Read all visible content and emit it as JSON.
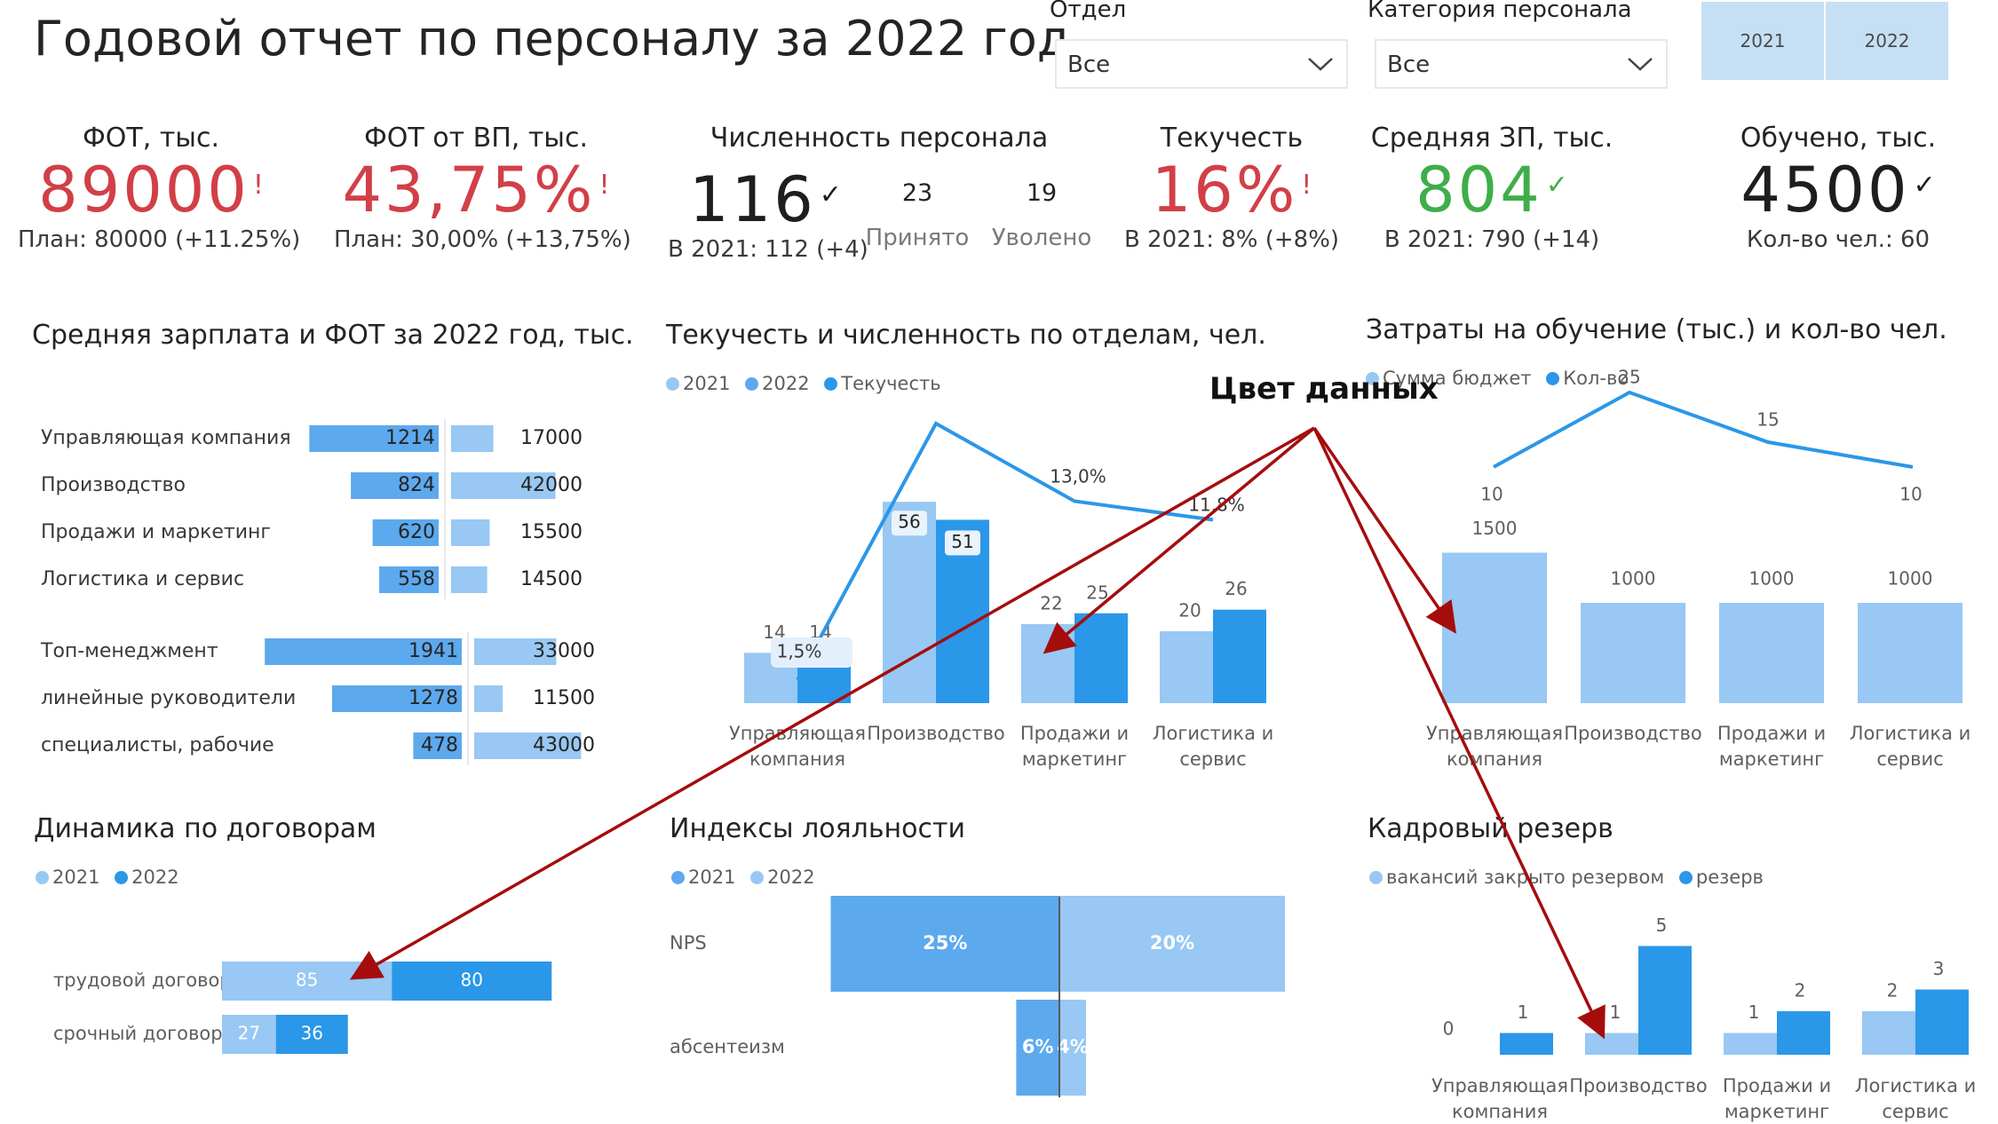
{
  "title": "Годовой отчет по персоналу за 2022 год",
  "colors": {
    "light": "#98c8f3",
    "mid": "#5da9ee",
    "dark": "#2b97e8",
    "red": "#d23f47",
    "green": "#3fae49",
    "arrow": "#a50d0d"
  },
  "filters": {
    "department": {
      "label": "Отдел",
      "value": "Все"
    },
    "category": {
      "label": "Категория персонала",
      "value": "Все"
    },
    "years": [
      "2021",
      "2022"
    ]
  },
  "kpis": {
    "fot": {
      "title": "ФОТ, тыс.",
      "value": "89000",
      "mark": "!",
      "sub": "План: 80000 (+11.25%)"
    },
    "fot_vp": {
      "title": "ФОТ от ВП, тыс.",
      "value": "43,75%",
      "mark": "!",
      "sub": "План: 30,00% (+13,75%)"
    },
    "headcount": {
      "title": "Численность персонала",
      "value": "116",
      "mark": "✓",
      "sub": "В 2021: 112 (+4)",
      "hired_value": "23",
      "hired_label": "Принято",
      "fired_value": "19",
      "fired_label": "Уволено"
    },
    "turnover": {
      "title": "Текучесть",
      "value": "16%",
      "mark": "!",
      "sub": "В 2021: 8% (+8%)"
    },
    "avg_salary": {
      "title": "Средняя ЗП, тыс.",
      "value": "804",
      "mark": "✓",
      "sub": "В 2021: 790 (+14)"
    },
    "trained": {
      "title": "Обучено, тыс.",
      "value": "4500",
      "mark": "✓",
      "sub": "Кол-во чел.: 60"
    }
  },
  "annotation": {
    "label": "Цвет данных"
  },
  "chart_data": [
    {
      "id": "salary",
      "type": "bar",
      "title": "Средняя зарплата и ФОТ за 2022 год, тыс.",
      "groups": [
        {
          "categories": [
            "Управляющая компания",
            "Производство",
            "Продажи и маркетинг",
            "Логистика и сервис"
          ],
          "avg_salary": [
            1214,
            824,
            620,
            558
          ],
          "fot": [
            17000,
            42000,
            15500,
            14500
          ]
        },
        {
          "categories": [
            "Топ-менеджмент",
            "линейные руководители",
            "специалисты, рабочие"
          ],
          "avg_salary": [
            1941,
            1278,
            478
          ],
          "fot": [
            33000,
            11500,
            43000
          ]
        }
      ]
    },
    {
      "id": "turnover",
      "type": "bar",
      "title": "Текучесть и численность по отделам, чел.",
      "legend": [
        "2021",
        "2022",
        "Текучесть"
      ],
      "categories": [
        "Управляющая компания",
        "Производство",
        "Продажи и маркетинг",
        "Логистика и сервис"
      ],
      "series": [
        {
          "name": "2021",
          "values": [
            14,
            56,
            22,
            20
          ]
        },
        {
          "name": "2022",
          "values": [
            14,
            51,
            25,
            26
          ]
        },
        {
          "name": "Текучесть",
          "values": [
            1.5,
            18.0,
            13.0,
            11.8
          ],
          "labels": [
            "1,5%",
            "",
            "13,0%",
            "11,8%"
          ]
        }
      ]
    },
    {
      "id": "training",
      "type": "bar",
      "title": "Затраты на обучение (тыс.) и кол-во чел.",
      "legend": [
        "Сумма бюджет",
        "Кол-во"
      ],
      "categories": [
        "Управляющая компания",
        "Производство",
        "Продажи и маркетинг",
        "Логистика и сервис"
      ],
      "series": [
        {
          "name": "Сумма бюджет",
          "values": [
            1500,
            1000,
            1000,
            1000
          ]
        },
        {
          "name": "Кол-во",
          "values": [
            10,
            25,
            15,
            10
          ]
        }
      ]
    },
    {
      "id": "contracts",
      "type": "bar",
      "title": "Динамика по договорам",
      "legend": [
        "2021",
        "2022"
      ],
      "categories": [
        "трудовой договор",
        "срочный договор"
      ],
      "series": [
        {
          "name": "2021",
          "values": [
            85,
            27
          ]
        },
        {
          "name": "2022",
          "values": [
            80,
            36
          ]
        }
      ]
    },
    {
      "id": "loyalty",
      "type": "bar",
      "title": "Индексы лояльности",
      "legend": [
        "2021",
        "2022"
      ],
      "categories": [
        "NPS",
        "абсентеизм"
      ],
      "series": [
        {
          "name": "2021",
          "values": [
            25,
            6
          ],
          "labels": [
            "25%",
            "6%"
          ]
        },
        {
          "name": "2022",
          "values": [
            20,
            4
          ],
          "labels": [
            "20%",
            "4%"
          ]
        }
      ]
    },
    {
      "id": "reserve",
      "type": "bar",
      "title": "Кадровый резерв",
      "legend": [
        "вакансий закрыто резервом",
        "резерв"
      ],
      "categories": [
        "Управляющая компания",
        "Производство",
        "Продажи и маркетинг",
        "Логистика и сервис"
      ],
      "series": [
        {
          "name": "вакансий закрыто резервом",
          "values": [
            0,
            1,
            1,
            2
          ]
        },
        {
          "name": "резерв",
          "values": [
            1,
            5,
            2,
            3
          ]
        }
      ]
    }
  ]
}
